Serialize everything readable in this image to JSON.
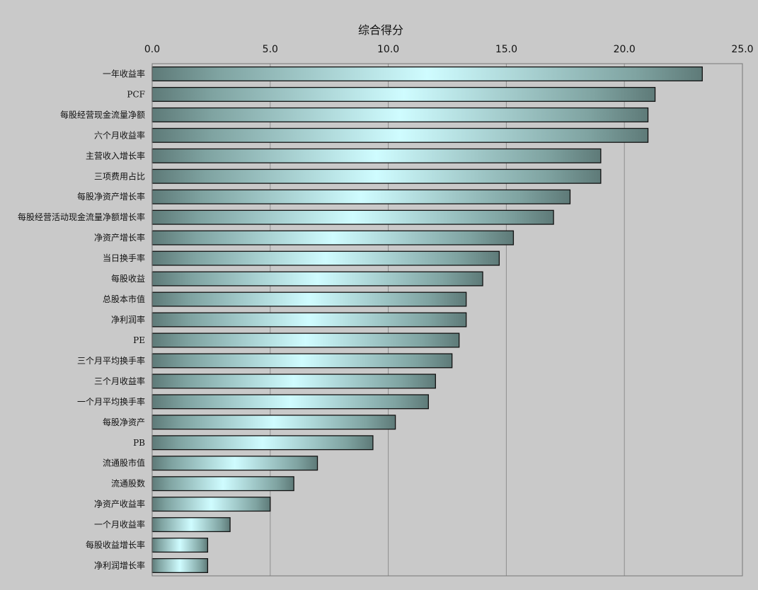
{
  "chart_data": {
    "type": "bar",
    "orientation": "horizontal",
    "xlabel": "综合得分",
    "xlim": [
      0,
      25
    ],
    "xticks": [
      0,
      5,
      10,
      15,
      20,
      25
    ],
    "xtick_labels": [
      "0.0",
      "5.0",
      "10.0",
      "15.0",
      "20.0",
      "25.0"
    ],
    "x_axis_position": "top",
    "grid": "vertical",
    "categories": [
      "一年收益率",
      "PCF",
      "每股经营现金流量净额",
      "六个月收益率",
      "主营收入增长率",
      "三项费用占比",
      "每股净资产增长率",
      "每股经营活动现金流量净额增长率",
      "净资产增长率",
      "当日换手率",
      "每股收益",
      "总股本市值",
      "净利润率",
      "PE",
      "三个月平均换手率",
      "三个月收益率",
      "一个月平均换手率",
      "每股净资产",
      "PB",
      "流通股市值",
      "流通股数",
      "净资产收益率",
      "一个月收益率",
      "每股收益增长率",
      "净利润增长率"
    ],
    "values": [
      23.3,
      21.3,
      21.0,
      21.0,
      19.0,
      19.0,
      17.7,
      17.0,
      15.3,
      14.7,
      14.0,
      13.3,
      13.3,
      13.0,
      12.7,
      12.0,
      11.7,
      10.3,
      9.35,
      7.0,
      6.0,
      5.0,
      3.3,
      2.35,
      2.35
    ]
  }
}
